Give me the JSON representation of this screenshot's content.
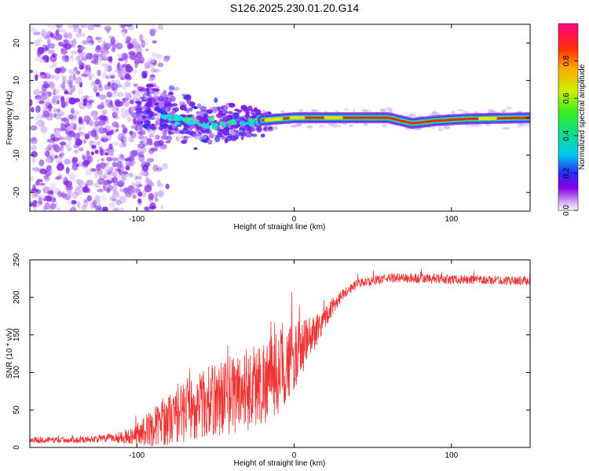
{
  "title": "S126.2025.230.01.20.G14",
  "chart_data": [
    {
      "type": "heatmap",
      "xlabel": "Height of straight line (km)",
      "ylabel": "Frequency (Hz)",
      "xlim": [
        -168,
        150
      ],
      "ylim": [
        -25,
        25
      ],
      "xticks": [
        "-100",
        "0",
        "100"
      ],
      "xtick_values": [
        -100,
        0,
        100
      ],
      "yticks": [
        "20",
        "10",
        "0",
        "-10",
        "-20"
      ],
      "ytick_values": [
        20,
        10,
        0,
        -10,
        -20
      ],
      "colorbar": {
        "label": "Normalized spectral amplitude",
        "range": [
          0,
          1
        ],
        "ticks": [
          "0.0",
          "0.2",
          "0.4",
          "0.6",
          "0.8"
        ],
        "tick_values": [
          0.0,
          0.2,
          0.4,
          0.6,
          0.8
        ]
      },
      "ridge_profile": [
        {
          "x": -95,
          "f": 1.5
        },
        {
          "x": -80,
          "f": 0.5
        },
        {
          "x": -60,
          "f": -1.5
        },
        {
          "x": -45,
          "f": -2.0
        },
        {
          "x": -30,
          "f": -1.0
        },
        {
          "x": -15,
          "f": -0.5
        },
        {
          "x": 0,
          "f": 0.0
        },
        {
          "x": 60,
          "f": 0.0
        },
        {
          "x": 75,
          "f": -1.5
        },
        {
          "x": 90,
          "f": -0.8
        },
        {
          "x": 110,
          "f": -0.3
        },
        {
          "x": 150,
          "f": 0.0
        }
      ]
    },
    {
      "type": "line",
      "xlabel": "Height of straight line (km)",
      "ylabel": "SNR (10 * v/v)",
      "xlim": [
        -168,
        150
      ],
      "ylim": [
        0,
        250
      ],
      "xticks": [
        "-100",
        "0",
        "100"
      ],
      "xtick_values": [
        -100,
        0,
        100
      ],
      "yticks": [
        "0",
        "50",
        "100",
        "150",
        "200",
        "250"
      ],
      "ytick_values": [
        0,
        50,
        100,
        150,
        200,
        250
      ],
      "series": [
        {
          "name": "SNR",
          "color": "#ee3333",
          "x": [
            -168,
            -140,
            -120,
            -105,
            -95,
            -85,
            -75,
            -65,
            -55,
            -45,
            -35,
            -25,
            -15,
            -8,
            0,
            10,
            20,
            30,
            40,
            60,
            80,
            100,
            120,
            150
          ],
          "y": [
            10,
            10,
            12,
            15,
            22,
            32,
            42,
            52,
            60,
            68,
            75,
            82,
            92,
            105,
            120,
            145,
            175,
            203,
            218,
            226,
            225,
            224,
            223,
            222
          ],
          "noise": [
            4,
            4,
            5,
            10,
            20,
            30,
            38,
            42,
            48,
            52,
            56,
            58,
            58,
            55,
            45,
            30,
            15,
            8,
            6,
            6,
            7,
            6,
            6,
            6
          ]
        }
      ]
    }
  ]
}
